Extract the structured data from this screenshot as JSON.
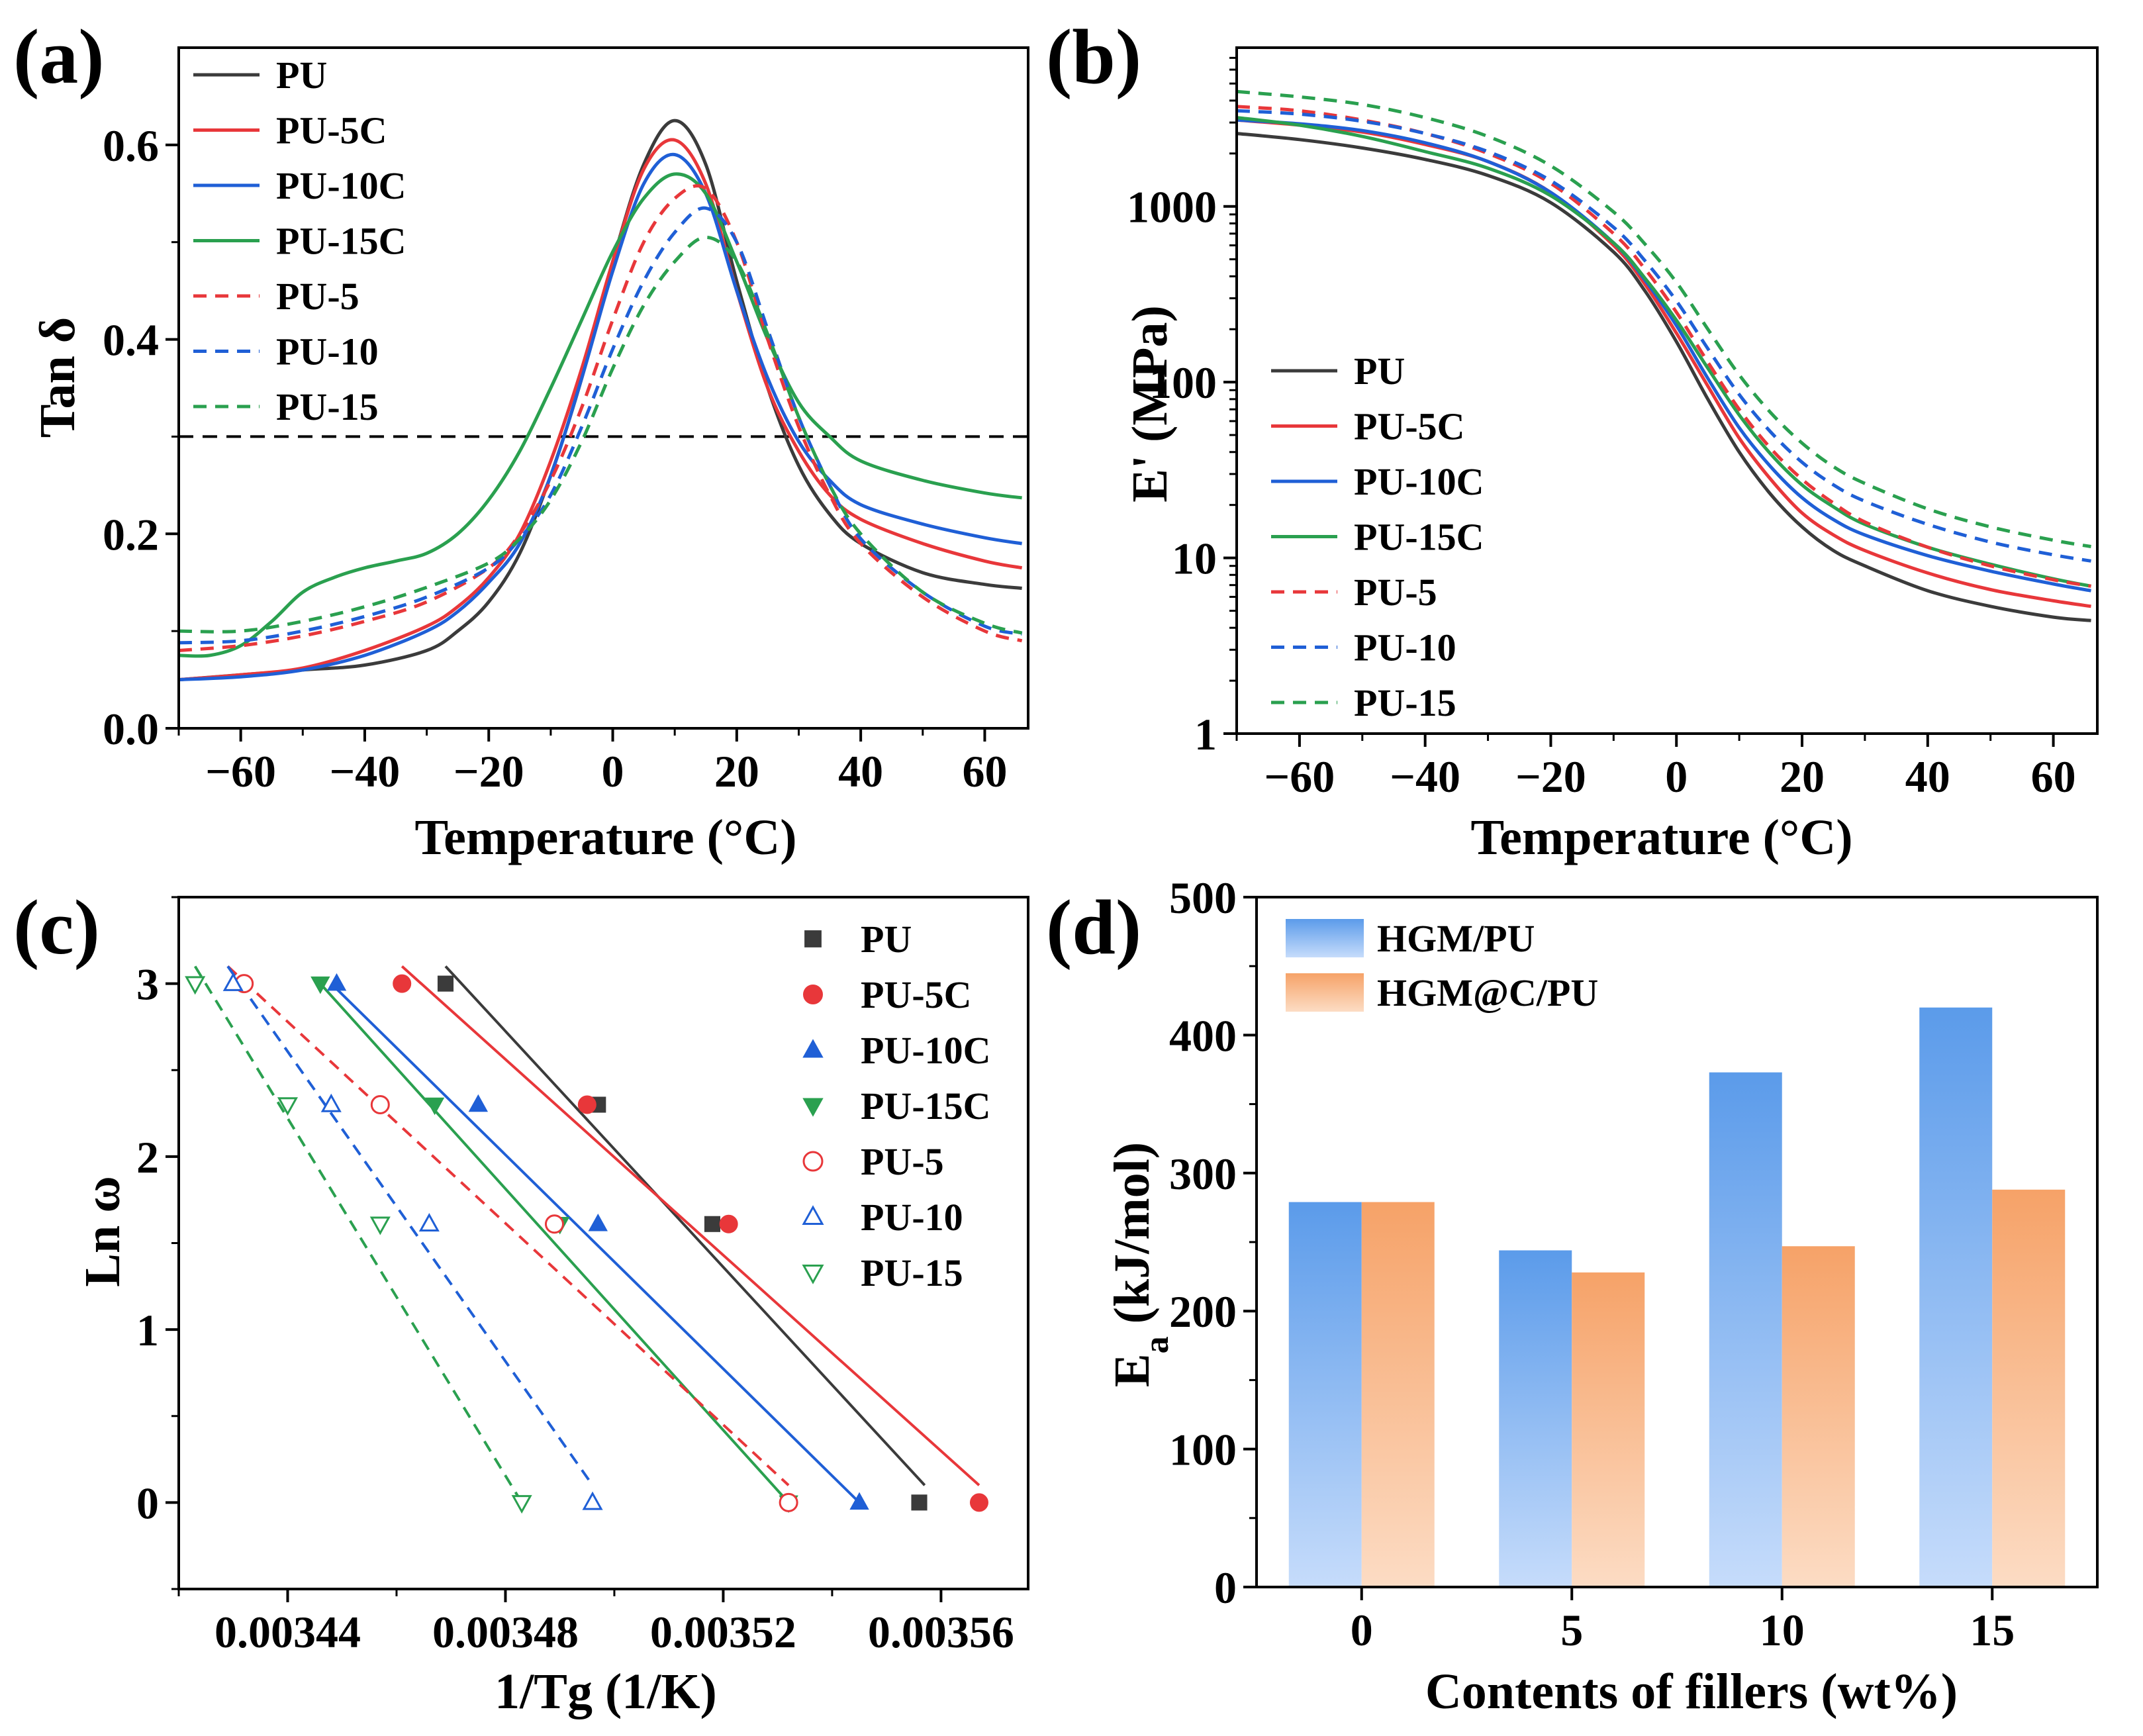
{
  "figure": {
    "panels": [
      "(a)",
      "(b)",
      "(c)",
      "(d)"
    ]
  },
  "chart_data": [
    {
      "id": "a",
      "type": "line",
      "panel_label": "(a)",
      "xlabel": "Temperature (°C)",
      "ylabel": "Tan δ",
      "xlim": [
        -70,
        67
      ],
      "ylim": [
        0,
        0.7
      ],
      "xticks": [
        -60,
        -40,
        -20,
        0,
        20,
        40,
        60
      ],
      "xtick_labels": [
        "−60",
        "−40",
        "−20",
        "0",
        "20",
        "40",
        "60"
      ],
      "yticks": [
        0.0,
        0.2,
        0.4,
        0.6
      ],
      "ytick_labels": [
        "0.0",
        "0.2",
        "0.4",
        "0.6"
      ],
      "reference_line": {
        "y": 0.3,
        "style": "dashed"
      },
      "legend_position": "top-left",
      "series": [
        {
          "name": "PU",
          "color": "#3b3b3b",
          "dash": false,
          "x": [
            -70,
            -60,
            -50,
            -40,
            -30,
            -25,
            -20,
            -15,
            -10,
            -5,
            0,
            5,
            10,
            15,
            20,
            25,
            30,
            35,
            40,
            50,
            60,
            66
          ],
          "y": [
            0.05,
            0.055,
            0.06,
            0.065,
            0.08,
            0.1,
            0.13,
            0.18,
            0.26,
            0.36,
            0.48,
            0.58,
            0.625,
            0.58,
            0.46,
            0.35,
            0.27,
            0.22,
            0.19,
            0.16,
            0.148,
            0.144
          ]
        },
        {
          "name": "PU-5C",
          "color": "#e8373a",
          "dash": false,
          "x": [
            -70,
            -60,
            -50,
            -40,
            -30,
            -25,
            -20,
            -15,
            -10,
            -5,
            0,
            5,
            10,
            15,
            20,
            25,
            30,
            35,
            40,
            50,
            60,
            66
          ],
          "y": [
            0.05,
            0.055,
            0.062,
            0.08,
            0.105,
            0.125,
            0.155,
            0.2,
            0.275,
            0.37,
            0.48,
            0.575,
            0.605,
            0.56,
            0.45,
            0.35,
            0.285,
            0.24,
            0.215,
            0.19,
            0.172,
            0.165
          ]
        },
        {
          "name": "PU-10C",
          "color": "#1f5fd6",
          "dash": false,
          "x": [
            -70,
            -60,
            -50,
            -40,
            -30,
            -25,
            -20,
            -15,
            -10,
            -5,
            0,
            5,
            10,
            15,
            20,
            25,
            30,
            35,
            40,
            50,
            60,
            66
          ],
          "y": [
            0.05,
            0.053,
            0.06,
            0.075,
            0.1,
            0.12,
            0.15,
            0.19,
            0.26,
            0.36,
            0.47,
            0.56,
            0.59,
            0.55,
            0.45,
            0.36,
            0.295,
            0.255,
            0.23,
            0.21,
            0.196,
            0.19
          ]
        },
        {
          "name": "PU-15C",
          "color": "#2aa04f",
          "dash": false,
          "x": [
            -70,
            -65,
            -60,
            -55,
            -50,
            -45,
            -40,
            -35,
            -30,
            -25,
            -20,
            -15,
            -10,
            -5,
            0,
            5,
            10,
            15,
            20,
            25,
            30,
            35,
            40,
            50,
            60,
            66
          ],
          "y": [
            0.075,
            0.075,
            0.085,
            0.11,
            0.14,
            0.155,
            0.165,
            0.172,
            0.18,
            0.2,
            0.235,
            0.285,
            0.35,
            0.42,
            0.49,
            0.545,
            0.57,
            0.55,
            0.48,
            0.4,
            0.335,
            0.3,
            0.275,
            0.255,
            0.242,
            0.237
          ]
        },
        {
          "name": "PU-5",
          "color": "#e8373a",
          "dash": true,
          "x": [
            -70,
            -60,
            -50,
            -40,
            -30,
            -20,
            -15,
            -10,
            -5,
            0,
            5,
            10,
            15,
            20,
            25,
            30,
            35,
            40,
            50,
            60,
            66
          ],
          "y": [
            0.08,
            0.085,
            0.095,
            0.11,
            0.13,
            0.165,
            0.2,
            0.255,
            0.33,
            0.42,
            0.5,
            0.545,
            0.555,
            0.5,
            0.4,
            0.31,
            0.24,
            0.19,
            0.135,
            0.1,
            0.09
          ]
        },
        {
          "name": "PU-10",
          "color": "#1f5fd6",
          "dash": true,
          "x": [
            -70,
            -60,
            -50,
            -40,
            -30,
            -20,
            -15,
            -10,
            -5,
            0,
            5,
            10,
            15,
            20,
            25,
            30,
            35,
            40,
            50,
            60,
            66
          ],
          "y": [
            0.088,
            0.09,
            0.1,
            0.115,
            0.135,
            0.165,
            0.195,
            0.24,
            0.31,
            0.39,
            0.46,
            0.51,
            0.535,
            0.5,
            0.41,
            0.32,
            0.25,
            0.195,
            0.14,
            0.105,
            0.097
          ]
        },
        {
          "name": "PU-15",
          "color": "#2aa04f",
          "dash": true,
          "x": [
            -70,
            -60,
            -50,
            -40,
            -30,
            -20,
            -15,
            -10,
            -5,
            0,
            5,
            10,
            15,
            20,
            25,
            30,
            35,
            40,
            50,
            60,
            66
          ],
          "y": [
            0.1,
            0.1,
            0.11,
            0.125,
            0.145,
            0.17,
            0.195,
            0.235,
            0.295,
            0.37,
            0.435,
            0.48,
            0.505,
            0.48,
            0.405,
            0.32,
            0.25,
            0.2,
            0.14,
            0.108,
            0.098
          ]
        }
      ]
    },
    {
      "id": "b",
      "type": "line",
      "panel_label": "(b)",
      "xlabel": "Temperature (°C)",
      "ylabel": "E' (MPa)",
      "yscale": "log",
      "xlim": [
        -70,
        67
      ],
      "ylim": [
        1,
        8000
      ],
      "xticks": [
        -60,
        -40,
        -20,
        0,
        20,
        40,
        60
      ],
      "xtick_labels": [
        "−60",
        "−40",
        "−20",
        "0",
        "20",
        "40",
        "60"
      ],
      "yticks": [
        1,
        10,
        100,
        1000
      ],
      "ytick_labels": [
        "1",
        "10",
        "100",
        "1000"
      ],
      "legend_position": "bottom-left",
      "series": [
        {
          "name": "PU",
          "color": "#3b3b3b",
          "dash": false,
          "x": [
            -70,
            -60,
            -50,
            -40,
            -30,
            -20,
            -10,
            -5,
            0,
            5,
            10,
            15,
            20,
            25,
            30,
            40,
            50,
            60,
            66
          ],
          "y": [
            2600,
            2400,
            2150,
            1850,
            1500,
            1050,
            550,
            330,
            170,
            80,
            40,
            23,
            15,
            11,
            9,
            6.5,
            5.3,
            4.6,
            4.4
          ]
        },
        {
          "name": "PU-5C",
          "color": "#e8373a",
          "dash": false,
          "x": [
            -70,
            -60,
            -50,
            -40,
            -30,
            -20,
            -10,
            -5,
            0,
            5,
            10,
            15,
            20,
            25,
            30,
            40,
            50,
            60,
            66
          ],
          "y": [
            3100,
            2900,
            2650,
            2250,
            1800,
            1200,
            600,
            360,
            190,
            95,
            48,
            28,
            18,
            13.5,
            11,
            8.2,
            6.6,
            5.7,
            5.3
          ]
        },
        {
          "name": "PU-10C",
          "color": "#1f5fd6",
          "dash": false,
          "x": [
            -70,
            -60,
            -50,
            -40,
            -30,
            -20,
            -10,
            -5,
            0,
            5,
            10,
            15,
            20,
            25,
            30,
            40,
            50,
            60,
            66
          ],
          "y": [
            3100,
            2950,
            2700,
            2300,
            1800,
            1200,
            620,
            380,
            210,
            105,
            55,
            33,
            22,
            16.5,
            13.5,
            10.3,
            8.4,
            7.1,
            6.5
          ]
        },
        {
          "name": "PU-15C",
          "color": "#2aa04f",
          "dash": false,
          "x": [
            -70,
            -60,
            -50,
            -40,
            -30,
            -20,
            -10,
            -5,
            0,
            5,
            10,
            15,
            20,
            25,
            30,
            40,
            50,
            60,
            66
          ],
          "y": [
            3200,
            2900,
            2500,
            2050,
            1650,
            1150,
            620,
            390,
            225,
            120,
            65,
            39,
            26,
            19.5,
            15.5,
            11.5,
            9.2,
            7.6,
            6.9
          ]
        },
        {
          "name": "PU-5",
          "color": "#e8373a",
          "dash": true,
          "x": [
            -70,
            -60,
            -50,
            -40,
            -30,
            -20,
            -10,
            -5,
            0,
            5,
            10,
            15,
            20,
            25,
            30,
            40,
            50,
            60,
            66
          ],
          "y": [
            3700,
            3500,
            3100,
            2600,
            2000,
            1350,
            700,
            440,
            250,
            130,
            70,
            42,
            28,
            20.5,
            16,
            11.5,
            9,
            7.5,
            6.9
          ]
        },
        {
          "name": "PU-10",
          "color": "#1f5fd6",
          "dash": true,
          "x": [
            -70,
            -60,
            -50,
            -40,
            -30,
            -20,
            -10,
            -5,
            0,
            5,
            10,
            15,
            20,
            25,
            30,
            40,
            50,
            60,
            66
          ],
          "y": [
            3500,
            3350,
            3050,
            2600,
            2050,
            1400,
            760,
            490,
            290,
            155,
            85,
            52,
            35,
            26,
            21,
            15.5,
            12.3,
            10.4,
            9.6
          ]
        },
        {
          "name": "PU-15",
          "color": "#2aa04f",
          "dash": true,
          "x": [
            -70,
            -60,
            -50,
            -40,
            -30,
            -20,
            -10,
            -5,
            0,
            5,
            10,
            15,
            20,
            25,
            30,
            40,
            50,
            60,
            66
          ],
          "y": [
            4500,
            4200,
            3800,
            3200,
            2500,
            1700,
            930,
            610,
            370,
            200,
            110,
            67,
            45,
            33,
            26.5,
            19,
            15,
            12.6,
            11.6
          ]
        }
      ]
    },
    {
      "id": "c",
      "type": "scatter",
      "panel_label": "(c)",
      "xlabel": "1/Tg (1/K)",
      "ylabel": "Ln ω",
      "xlim": [
        0.00342,
        0.003576
      ],
      "ylim": [
        -0.5,
        3.5
      ],
      "xticks": [
        0.00344,
        0.00348,
        0.00352,
        0.00356
      ],
      "xtick_labels": [
        "0.00344",
        "0.00348",
        "0.00352",
        "0.00356"
      ],
      "yticks": [
        0,
        1,
        2,
        3
      ],
      "ytick_labels": [
        "0",
        "1",
        "2",
        "3"
      ],
      "legend_position": "top-right",
      "series": [
        {
          "name": "PU",
          "color": "#3b3b3b",
          "marker": "square",
          "filled": true,
          "dash": false,
          "x": [
            0.003469,
            0.003497,
            0.003518,
            0.003556
          ],
          "y": [
            3.0,
            2.3,
            1.61,
            0.0
          ],
          "fit": {
            "x": [
              0.003469,
              0.003557
            ],
            "y": [
              3.1,
              0.1
            ]
          }
        },
        {
          "name": "PU-5C",
          "color": "#e8373a",
          "marker": "circle",
          "filled": true,
          "dash": false,
          "x": [
            0.003461,
            0.003495,
            0.003521,
            0.003567
          ],
          "y": [
            3.0,
            2.3,
            1.61,
            0.0
          ],
          "fit": {
            "x": [
              0.003461,
              0.003567
            ],
            "y": [
              3.1,
              0.1
            ]
          }
        },
        {
          "name": "PU-10C",
          "color": "#1f5fd6",
          "marker": "triangle-up",
          "filled": true,
          "dash": false,
          "x": [
            0.003449,
            0.003475,
            0.003497,
            0.003545
          ],
          "y": [
            3.0,
            2.3,
            1.61,
            0.0
          ],
          "fit": {
            "x": [
              0.003448,
              0.003545
            ],
            "y": [
              3.0,
              0.0
            ]
          }
        },
        {
          "name": "PU-15C",
          "color": "#2aa04f",
          "marker": "triangle-down",
          "filled": true,
          "dash": false,
          "x": [
            0.003446,
            0.003467,
            0.00349,
            0.003532
          ],
          "y": [
            3.0,
            2.3,
            1.61,
            0.0
          ],
          "fit": {
            "x": [
              0.003446,
              0.003532
            ],
            "y": [
              3.0,
              0.0
            ]
          }
        },
        {
          "name": "PU-5",
          "color": "#e8373a",
          "marker": "circle",
          "filled": false,
          "dash": true,
          "x": [
            0.003432,
            0.003457,
            0.003489,
            0.003532
          ],
          "y": [
            3.0,
            2.3,
            1.61,
            0.0
          ],
          "fit": {
            "x": [
              0.003429,
              0.003532
            ],
            "y": [
              3.1,
              0.1
            ]
          }
        },
        {
          "name": "PU-10",
          "color": "#1f5fd6",
          "marker": "triangle-up",
          "filled": false,
          "dash": true,
          "x": [
            0.00343,
            0.003448,
            0.003466,
            0.003496
          ],
          "y": [
            3.0,
            2.3,
            1.61,
            0.0
          ],
          "fit": {
            "x": [
              0.003429,
              0.003496
            ],
            "y": [
              3.1,
              0.1
            ]
          }
        },
        {
          "name": "PU-15",
          "color": "#2aa04f",
          "marker": "triangle-down",
          "filled": false,
          "dash": true,
          "x": [
            0.003423,
            0.00344,
            0.003457,
            0.003483
          ],
          "y": [
            3.0,
            2.3,
            1.61,
            0.0
          ],
          "fit": {
            "x": [
              0.003423,
              0.003483
            ],
            "y": [
              3.1,
              0.0
            ]
          }
        }
      ]
    },
    {
      "id": "d",
      "type": "bar",
      "panel_label": "(d)",
      "xlabel": "Contents of fillers (wt%)",
      "ylabel": "E",
      "ylabel_sub": "a",
      "ylabel_rest": " (kJ/mol)",
      "categories": [
        "0",
        "5",
        "10",
        "15"
      ],
      "ylim": [
        0,
        500
      ],
      "yticks": [
        0,
        100,
        200,
        300,
        400,
        500
      ],
      "ytick_labels": [
        "0",
        "100",
        "200",
        "300",
        "400",
        "500"
      ],
      "legend_position": "top-left",
      "series": [
        {
          "name": "HGM/PU",
          "color_top": "#5b9bea",
          "color_bottom": "#c6dcfb",
          "values": [
            279,
            244,
            373,
            420
          ]
        },
        {
          "name": "HGM@C/PU",
          "color_top": "#f6a268",
          "color_bottom": "#fcdcc4",
          "values": [
            279,
            228,
            247,
            288
          ]
        }
      ]
    }
  ]
}
